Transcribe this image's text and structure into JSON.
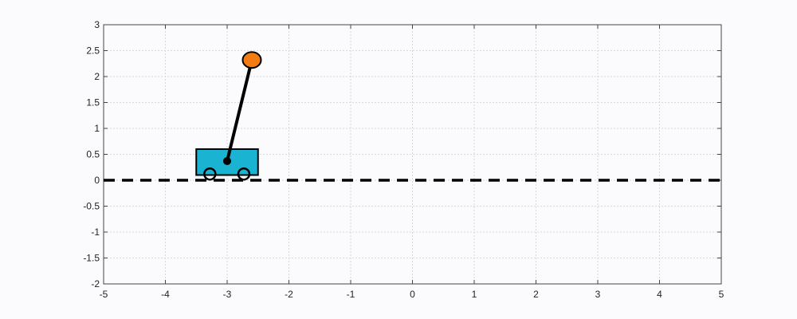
{
  "chart_data": {
    "type": "scatter",
    "title": "",
    "xlabel": "",
    "ylabel": "",
    "xlim": [
      -5,
      5
    ],
    "ylim": [
      -2,
      3
    ],
    "grid": true,
    "x_ticks": [
      "-5",
      "-4",
      "-3",
      "-2",
      "-1",
      "0",
      "1",
      "2",
      "3",
      "4",
      "5"
    ],
    "y_ticks": [
      "-2",
      "-1.5",
      "-1",
      "-0.5",
      "0",
      "0.5",
      "1",
      "1.5",
      "2",
      "2.5",
      "3"
    ],
    "track": {
      "y": 0,
      "x_range": [
        -5,
        5
      ],
      "style": "dashed",
      "color": "#000000"
    },
    "cart": {
      "body_x": [
        -3.5,
        -2.5
      ],
      "body_y": [
        0.1,
        0.6
      ],
      "wheel_centers_x": [
        -3.28,
        -2.73
      ],
      "wheel_center_y": 0.12,
      "color": "#1ab3d1"
    },
    "pendulum": {
      "pivot": [
        -3.0,
        0.37
      ],
      "bob": [
        -2.6,
        2.32
      ],
      "bob_color": "#f37b14",
      "rod_color": "#000000"
    },
    "colors": {
      "grid": "#d7d7dc",
      "axis": "#444444",
      "background": "#fbfbfd"
    }
  }
}
